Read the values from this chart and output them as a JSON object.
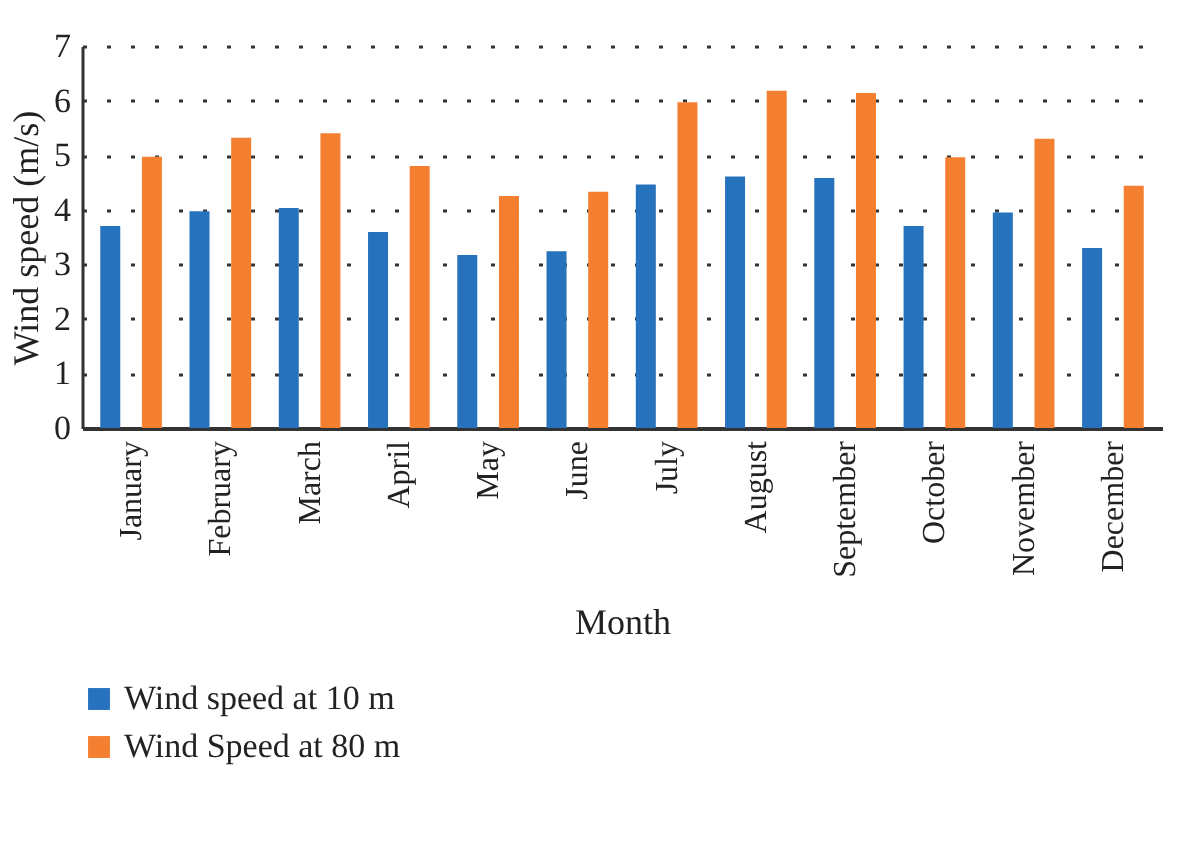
{
  "chart_data": {
    "type": "bar",
    "xlabel": "Month",
    "ylabel": "Wind speed (m/s)",
    "categories": [
      "January",
      "February",
      "March",
      "April",
      "May",
      "June",
      "July",
      "August",
      "September",
      "October",
      "November",
      "December"
    ],
    "series": [
      {
        "name": "Wind speed at 10 m",
        "color": "#2672bc",
        "values": [
          3.7,
          3.97,
          4.03,
          3.59,
          3.17,
          3.24,
          4.46,
          4.61,
          4.58,
          3.7,
          3.95,
          3.3
        ]
      },
      {
        "name": "Wind Speed at 80 m",
        "color": "#f47f30",
        "values": [
          4.97,
          5.32,
          5.4,
          4.8,
          4.25,
          4.33,
          5.97,
          6.18,
          6.14,
          4.96,
          5.3,
          4.44
        ]
      }
    ],
    "ylim": [
      0,
      7
    ],
    "yticks": [
      0,
      1,
      2,
      3,
      4,
      5,
      6,
      7
    ],
    "grid": "y",
    "legend": "bottom left"
  }
}
